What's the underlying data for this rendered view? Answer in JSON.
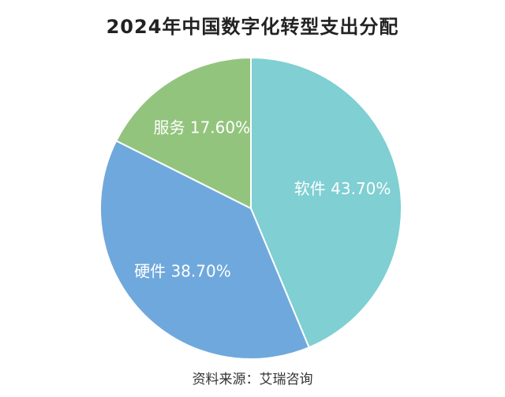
{
  "chart_data": {
    "type": "pie",
    "title": "2024年中国数字化转型支出分配",
    "slices": [
      {
        "name": "软件",
        "value": 43.7,
        "label": "软件 43.70%",
        "color": "#7fcfd3"
      },
      {
        "name": "硬件",
        "value": 38.7,
        "label": "硬件 38.70%",
        "color": "#6fa8dc"
      },
      {
        "name": "服务",
        "value": 17.6,
        "label": "服务 17.60%",
        "color": "#93c47d"
      }
    ],
    "start_angle_deg": 0,
    "direction": "clockwise",
    "legend": "none",
    "source": "资料来源：艾瑞咨询"
  }
}
